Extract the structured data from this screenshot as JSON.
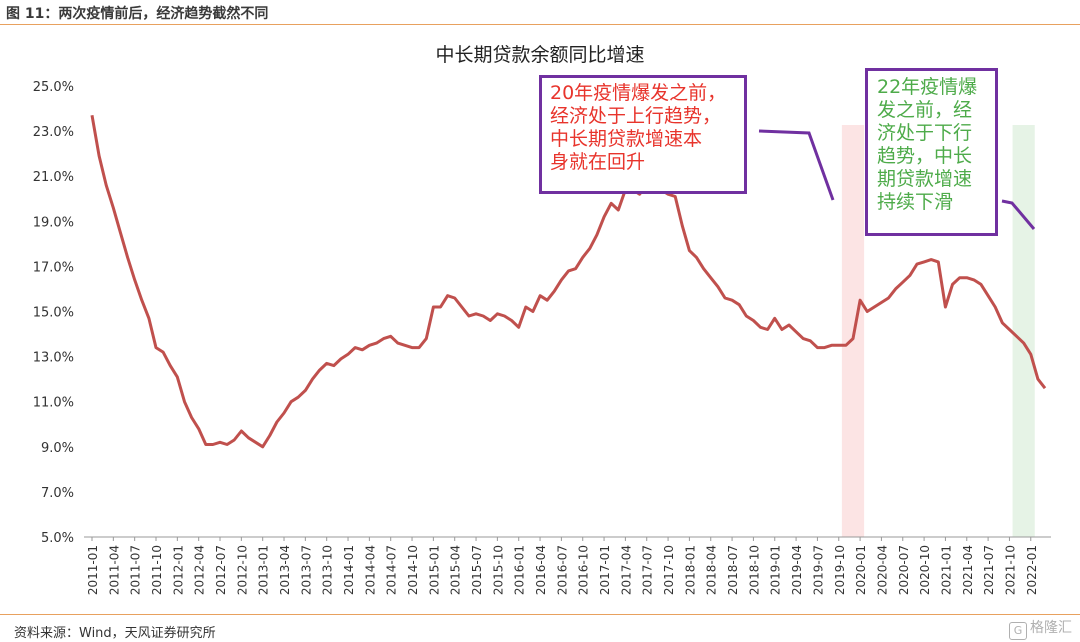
{
  "figure_caption": "图 11：两次疫情前后，经济趋势截然不同",
  "source_note": "资料来源：Wind，天风证券研究所",
  "watermark": {
    "icon": "gelonghui-logo-icon",
    "glyph": "G",
    "text": "格隆汇"
  },
  "colors": {
    "line": "#c0504d",
    "accent_rule": "#e8a15e",
    "callout_border": "#7030a0",
    "callout_left_text": "#e8342c",
    "callout_right_text": "#4eab4a",
    "shade_2020": "#fce4e4",
    "shade_2022": "#e6f3e6"
  },
  "callouts": {
    "left": {
      "lines": [
        "20年疫情爆发之前，",
        "经济处于上行趋势，",
        "中长期贷款增速本",
        "身就在回升"
      ]
    },
    "right": {
      "lines": [
        "22年疫情爆",
        "发之前，经",
        "济处于下行",
        "趋势，中长",
        "期贷款增速",
        "持续下滑"
      ]
    }
  },
  "chart_data": {
    "type": "line",
    "title": "中长期贷款余额同比增速",
    "xlabel": "",
    "ylabel": "",
    "ylim": [
      5.0,
      25.0
    ],
    "yticks": [
      "5.0%",
      "7.0%",
      "9.0%",
      "11.0%",
      "13.0%",
      "15.0%",
      "17.0%",
      "19.0%",
      "21.0%",
      "23.0%",
      "25.0%"
    ],
    "xticks": [
      "2011-01",
      "2011-04",
      "2011-07",
      "2011-10",
      "2012-01",
      "2012-04",
      "2012-07",
      "2012-10",
      "2013-01",
      "2013-04",
      "2013-07",
      "2013-10",
      "2014-01",
      "2014-04",
      "2014-07",
      "2014-10",
      "2015-01",
      "2015-04",
      "2015-07",
      "2015-10",
      "2016-01",
      "2016-04",
      "2016-07",
      "2016-10",
      "2017-01",
      "2017-04",
      "2017-07",
      "2017-10",
      "2018-01",
      "2018-04",
      "2018-07",
      "2018-10",
      "2019-01",
      "2019-04",
      "2019-07",
      "2019-10",
      "2020-01",
      "2020-04",
      "2020-07",
      "2020-10",
      "2021-01",
      "2021-04",
      "2021-07",
      "2021-10",
      "2022-01"
    ],
    "start_month": "2011-01",
    "grid": false,
    "legend": "none",
    "shaded_ranges": [
      {
        "from": "2019-11",
        "to": "2020-01",
        "color": "#fce4e4"
      },
      {
        "from": "2021-11",
        "to": "2022-01",
        "color": "#e6f3e6"
      }
    ],
    "series": [
      {
        "values": [
          23.7,
          21.9,
          20.6,
          19.6,
          18.5,
          17.4,
          16.4,
          15.5,
          14.7,
          13.4,
          13.2,
          12.6,
          12.1,
          11.0,
          10.3,
          9.8,
          9.1,
          9.1,
          9.2,
          9.1,
          9.3,
          9.7,
          9.4,
          9.2,
          9.0,
          9.5,
          10.1,
          10.5,
          11.0,
          11.2,
          11.5,
          12.0,
          12.4,
          12.7,
          12.6,
          12.9,
          13.1,
          13.4,
          13.3,
          13.5,
          13.6,
          13.8,
          13.9,
          13.6,
          13.5,
          13.4,
          13.4,
          13.8,
          15.2,
          15.2,
          15.7,
          15.6,
          15.2,
          14.8,
          14.9,
          14.8,
          14.6,
          14.9,
          14.8,
          14.6,
          14.3,
          15.2,
          15.0,
          15.7,
          15.5,
          15.9,
          16.4,
          16.8,
          16.9,
          17.4,
          17.8,
          18.4,
          19.2,
          19.8,
          19.5,
          20.4,
          20.4,
          20.2,
          20.6,
          20.8,
          20.4,
          20.2,
          20.1,
          18.8,
          17.7,
          17.4,
          16.9,
          16.5,
          16.1,
          15.6,
          15.5,
          15.3,
          14.8,
          14.6,
          14.3,
          14.2,
          14.7,
          14.2,
          14.4,
          14.1,
          13.8,
          13.7,
          13.4,
          13.4,
          13.5,
          13.5,
          13.5,
          13.8,
          15.5,
          15.0,
          15.2,
          15.4,
          15.6,
          16.0,
          16.3,
          16.6,
          17.1,
          17.2,
          17.3,
          17.2,
          15.2,
          16.2,
          16.5,
          16.5,
          16.4,
          16.2,
          15.7,
          15.2,
          14.5,
          14.2,
          13.9,
          13.6,
          13.1,
          12.0,
          11.6
        ]
      }
    ]
  }
}
